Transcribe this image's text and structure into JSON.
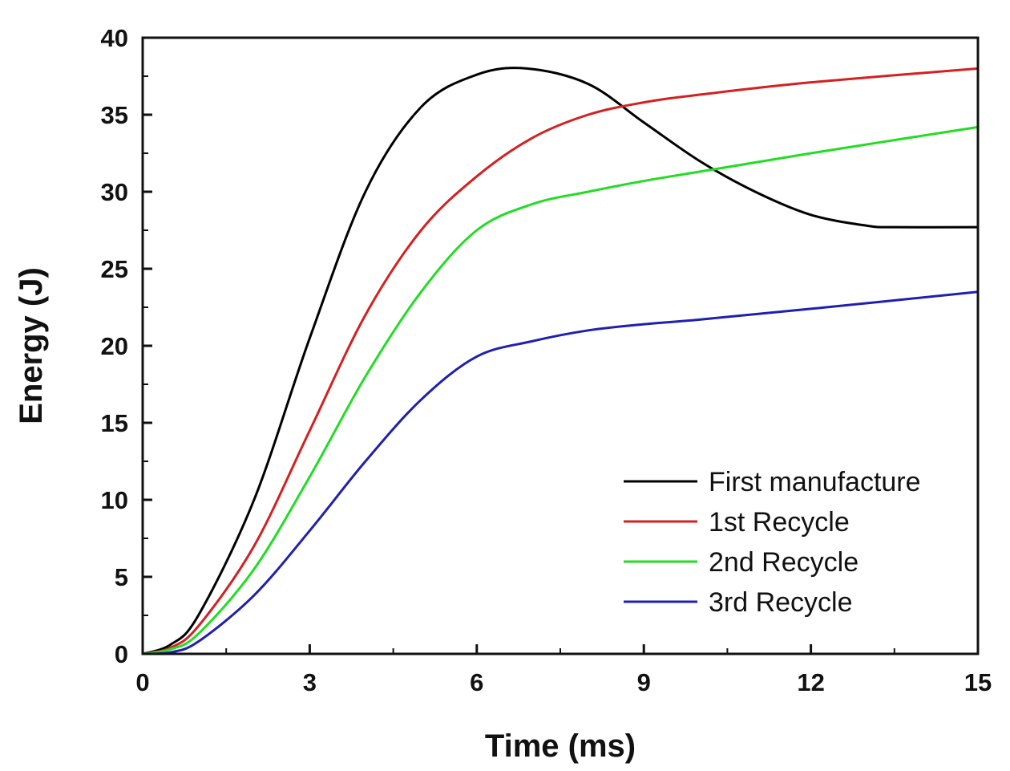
{
  "chart_data": {
    "type": "line",
    "title": "",
    "xlabel": "Time (ms)",
    "ylabel": "Energy (J)",
    "xlim": [
      0,
      15
    ],
    "ylim": [
      0,
      40
    ],
    "xticks": [
      0,
      3,
      6,
      9,
      12,
      15
    ],
    "yticks": [
      0,
      5,
      10,
      15,
      20,
      25,
      30,
      35,
      40
    ],
    "grid": false,
    "legend_position": "bottom-right",
    "series": [
      {
        "name": "First manufacture",
        "color": "#000000",
        "x": [
          0,
          0.5,
          1,
          2,
          3,
          4,
          5,
          6,
          6.9,
          8,
          9,
          10,
          11,
          12,
          13,
          13.5,
          15
        ],
        "y": [
          0,
          0.6,
          2.5,
          10,
          20.5,
          30,
          35.5,
          37.6,
          38,
          37,
          34.5,
          32,
          30,
          28.5,
          27.8,
          27.7,
          27.7
        ]
      },
      {
        "name": "1st Recycle",
        "color": "#d42020",
        "x": [
          0,
          0.5,
          1,
          2,
          3,
          4,
          5,
          6,
          7,
          8,
          9,
          10,
          12,
          15
        ],
        "y": [
          0,
          0.4,
          1.8,
          7,
          14.5,
          22,
          27.5,
          31,
          33.5,
          35,
          35.8,
          36.3,
          37.1,
          38
        ]
      },
      {
        "name": "2nd Recycle",
        "color": "#22dd22",
        "x": [
          0,
          0.5,
          1,
          2,
          3,
          4,
          5,
          6,
          7,
          8,
          9,
          10,
          12,
          15
        ],
        "y": [
          0,
          0.3,
          1.3,
          5.5,
          11.5,
          18,
          23.5,
          27.5,
          29.2,
          30,
          30.7,
          31.3,
          32.5,
          34.2
        ]
      },
      {
        "name": "3rd Recycle",
        "color": "#2020b0",
        "x": [
          0,
          0.5,
          1,
          2,
          3,
          4,
          5,
          6,
          7,
          8,
          9,
          10,
          12,
          15
        ],
        "y": [
          0,
          0.1,
          0.8,
          3.8,
          8,
          12.5,
          16.5,
          19.3,
          20.3,
          21,
          21.4,
          21.7,
          22.4,
          23.5
        ]
      }
    ]
  }
}
